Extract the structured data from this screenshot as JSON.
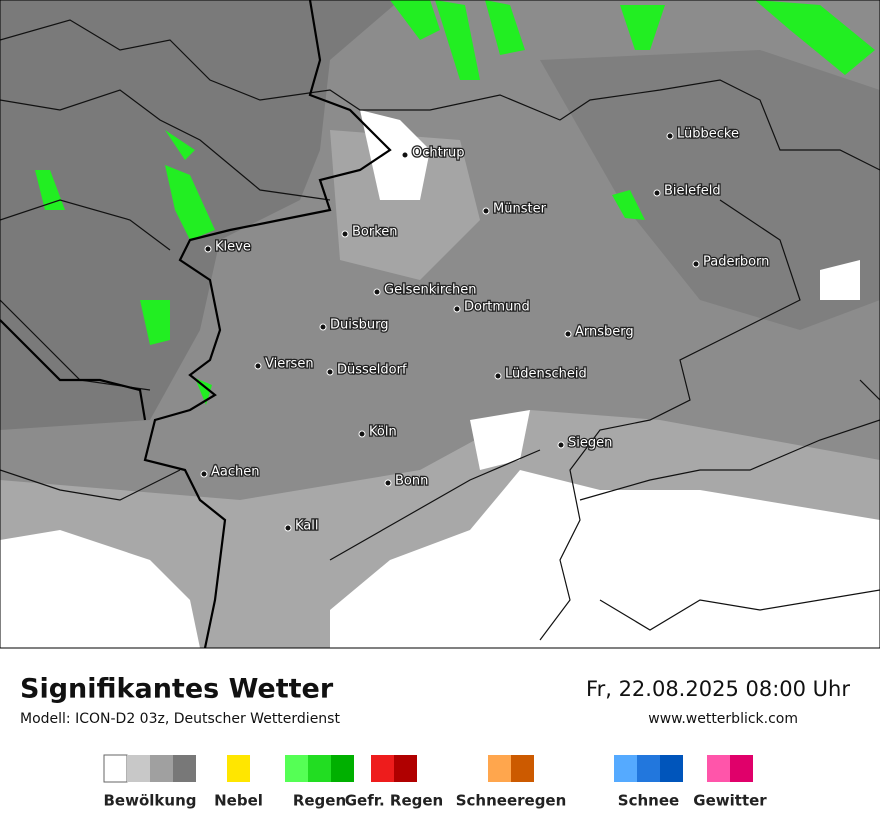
{
  "header": {
    "title": "Signifikantes Wetter",
    "model": "Modell: ICON-D2 03z, Deutscher Wetterdienst",
    "datetime": "Fr, 22.08.2025 08:00 Uhr",
    "website": "www.wetterblick.com"
  },
  "cities": [
    "Lübbecke",
    "Ochtrup",
    "Bielefeld",
    "Münster",
    "Borken",
    "Kleve",
    "Paderborn",
    "Gelsenkirchen",
    "Dortmund",
    "Duisburg",
    "Arnsberg",
    "Viersen",
    "Düsseldorf",
    "Lüdenscheid",
    "Köln",
    "Siegen",
    "Aachen",
    "Bonn",
    "Kall"
  ],
  "legend": [
    {
      "label": "Bewölkung",
      "colors": [
        "#ffffff",
        "#c8c8c8",
        "#a0a0a0",
        "#787878"
      ]
    },
    {
      "label": "Nebel",
      "colors": [
        "#ffe600"
      ]
    },
    {
      "label": "Regen",
      "colors": [
        "#55ff55",
        "#22dd22",
        "#00b000"
      ]
    },
    {
      "label": "Gefr. Regen",
      "colors": [
        "#ee1c1c",
        "#b00000"
      ]
    },
    {
      "label": "Schneeregen",
      "colors": [
        "#ffa64d",
        "#cc5a00"
      ]
    },
    {
      "label": "Schnee",
      "colors": [
        "#55aaff",
        "#2277dd",
        "#0055bb"
      ]
    },
    {
      "label": "Gewitter",
      "colors": [
        "#ff55aa",
        "#e0006a"
      ]
    }
  ]
}
